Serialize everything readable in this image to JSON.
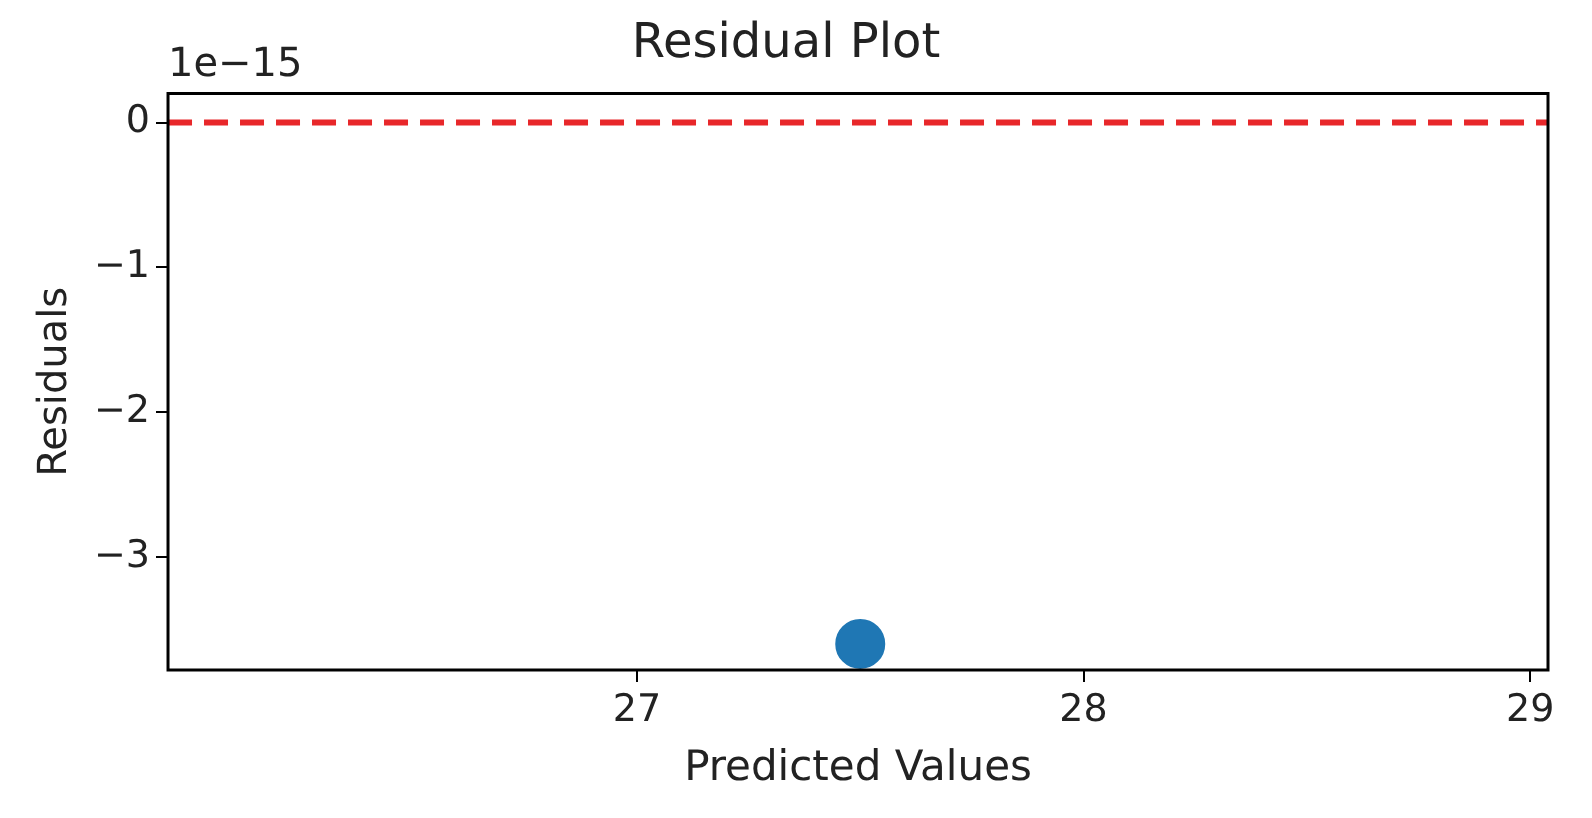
{
  "chart_data": {
    "type": "scatter",
    "title": "Residual Plot",
    "xlabel": "Predicted Values",
    "ylabel": "Residuals",
    "annotations": [
      "1e−15"
    ],
    "series": [
      {
        "color": "#1f77b4",
        "x": [
          27.5
        ],
        "values": [
          -3.6
        ]
      }
    ],
    "xlim": [
      25.95,
      29.04
    ],
    "xticks": [
      27,
      28,
      29
    ],
    "ylim": [
      -3.78,
      0.2
    ],
    "yticks": [
      -3,
      -2,
      -1,
      0
    ],
    "ref_lines": [
      {
        "axis": "y",
        "value": 0,
        "color": "#e8272a",
        "line_style": "dashed"
      }
    ],
    "marker": "circle",
    "grid": false,
    "legend": false
  }
}
